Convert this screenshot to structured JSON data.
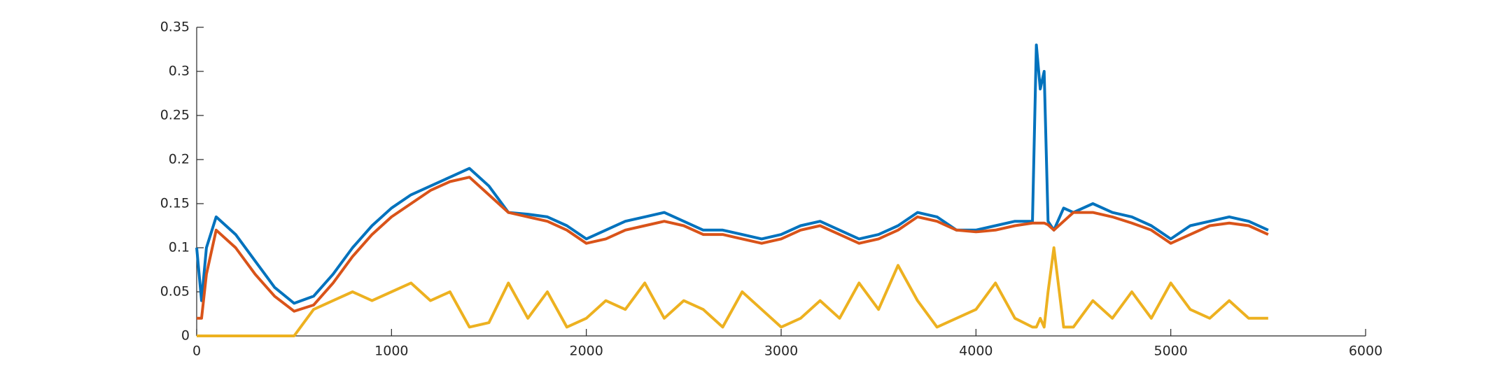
{
  "chart_data": {
    "type": "line",
    "x": [
      0,
      25,
      50,
      100,
      200,
      300,
      400,
      500,
      600,
      700,
      800,
      900,
      1000,
      1100,
      1200,
      1300,
      1400,
      1500,
      1600,
      1700,
      1800,
      1900,
      2000,
      2100,
      2200,
      2300,
      2400,
      2500,
      2600,
      2700,
      2800,
      2900,
      3000,
      3100,
      3200,
      3300,
      3400,
      3500,
      3600,
      3700,
      3800,
      3900,
      4000,
      4100,
      4200,
      4290,
      4310,
      4330,
      4350,
      4370,
      4400,
      4450,
      4500,
      4600,
      4700,
      4800,
      4900,
      5000,
      5100,
      5200,
      5300,
      5400,
      5500
    ],
    "series": [
      {
        "color": "#0072bd",
        "values": [
          0.1,
          0.04,
          0.1,
          0.135,
          0.115,
          0.085,
          0.055,
          0.037,
          0.045,
          0.07,
          0.1,
          0.125,
          0.145,
          0.16,
          0.17,
          0.18,
          0.19,
          0.17,
          0.14,
          0.138,
          0.135,
          0.125,
          0.11,
          0.12,
          0.13,
          0.135,
          0.14,
          0.13,
          0.12,
          0.12,
          0.115,
          0.11,
          0.115,
          0.125,
          0.13,
          0.12,
          0.11,
          0.115,
          0.125,
          0.14,
          0.135,
          0.12,
          0.12,
          0.125,
          0.13,
          0.13,
          0.33,
          0.28,
          0.3,
          0.13,
          0.12,
          0.145,
          0.14,
          0.15,
          0.14,
          0.135,
          0.125,
          0.11,
          0.125,
          0.13,
          0.135,
          0.13,
          0.12
        ]
      },
      {
        "color": "#d95319",
        "values": [
          0.02,
          0.02,
          0.07,
          0.12,
          0.1,
          0.07,
          0.045,
          0.028,
          0.035,
          0.06,
          0.09,
          0.115,
          0.135,
          0.15,
          0.165,
          0.175,
          0.18,
          0.16,
          0.14,
          0.135,
          0.13,
          0.12,
          0.105,
          0.11,
          0.12,
          0.125,
          0.13,
          0.125,
          0.115,
          0.115,
          0.11,
          0.105,
          0.11,
          0.12,
          0.125,
          0.115,
          0.105,
          0.11,
          0.12,
          0.135,
          0.13,
          0.12,
          0.118,
          0.12,
          0.125,
          0.128,
          0.128,
          0.128,
          0.128,
          0.126,
          0.12,
          0.13,
          0.14,
          0.14,
          0.135,
          0.128,
          0.12,
          0.105,
          0.115,
          0.125,
          0.128,
          0.125,
          0.115
        ]
      },
      {
        "color": "#edb120",
        "values": [
          0,
          0,
          0,
          0,
          0,
          0,
          0,
          0,
          0.03,
          0.04,
          0.05,
          0.04,
          0.05,
          0.06,
          0.04,
          0.05,
          0.01,
          0.015,
          0.06,
          0.02,
          0.05,
          0.01,
          0.02,
          0.04,
          0.03,
          0.06,
          0.02,
          0.04,
          0.03,
          0.01,
          0.05,
          0.03,
          0.01,
          0.02,
          0.04,
          0.02,
          0.06,
          0.03,
          0.08,
          0.04,
          0.01,
          0.02,
          0.03,
          0.06,
          0.02,
          0.01,
          0.01,
          0.02,
          0.01,
          0.05,
          0.1,
          0.01,
          0.01,
          0.04,
          0.02,
          0.05,
          0.02,
          0.06,
          0.03,
          0.02,
          0.04,
          0.02,
          0.02
        ]
      }
    ],
    "xlim": [
      0,
      6000
    ],
    "xticks": [
      0,
      1000,
      2000,
      3000,
      4000,
      5000,
      6000
    ],
    "ylim": [
      0,
      0.35
    ],
    "yticks": [
      0,
      0.05,
      0.1,
      0.15,
      0.2,
      0.25,
      0.3,
      0.35
    ]
  }
}
